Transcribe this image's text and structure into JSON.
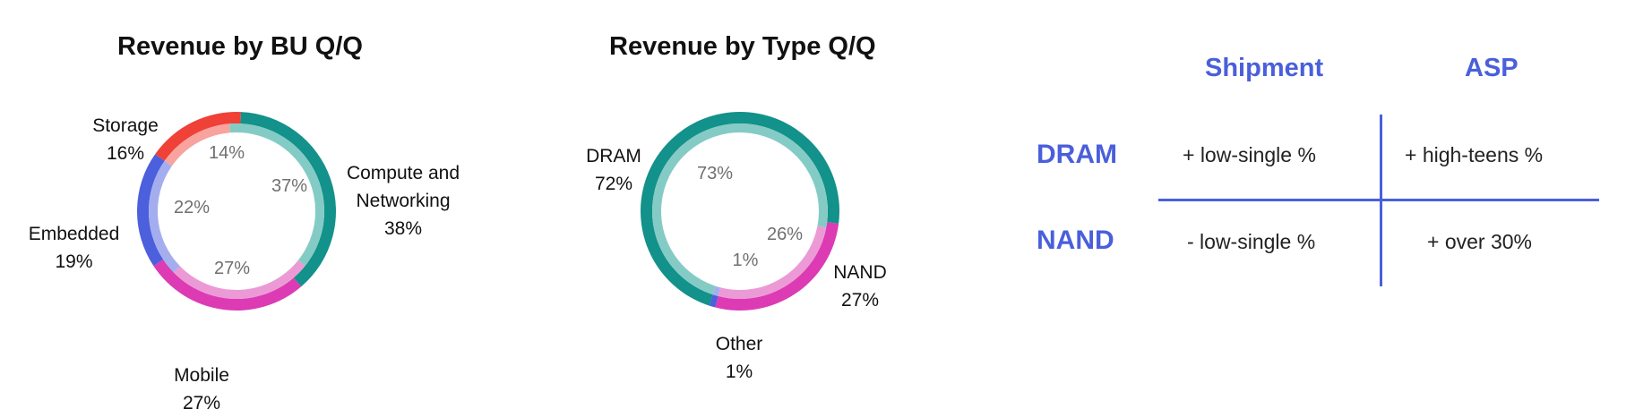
{
  "charts": {
    "bu": {
      "title": "Revenue by BU Q/Q",
      "segments": [
        {
          "name": "Storage",
          "outer": "16%",
          "inner": "14%",
          "color_outer": "#ef4137",
          "color_inner": "#f8a39e"
        },
        {
          "name": "Compute and\nNetworking",
          "outer": "38%",
          "inner": "37%",
          "color_outer": "#13918b",
          "color_inner": "#84cbc6"
        },
        {
          "name": "Mobile",
          "outer": "27%",
          "inner": "27%",
          "color_outer": "#dc3bb4",
          "color_inner": "#ec9ad6"
        },
        {
          "name": "Embedded",
          "outer": "19%",
          "inner": "22%",
          "color_outer": "#4c5fdd",
          "color_inner": "#a4aeee"
        }
      ]
    },
    "type": {
      "title": "Revenue by Type Q/Q",
      "segments": [
        {
          "name": "DRAM",
          "outer": "72%",
          "inner": "73%",
          "color_outer": "#13918b",
          "color_inner": "#84cbc6"
        },
        {
          "name": "NAND",
          "outer": "27%",
          "inner": "26%",
          "color_outer": "#dc3bb4",
          "color_inner": "#ec9ad6"
        },
        {
          "name": "Other",
          "outer": "1%",
          "inner": "1%",
          "color_outer": "#4c5fdd",
          "color_inner": "#a4aeee"
        }
      ]
    }
  },
  "chart_data": [
    {
      "type": "pie",
      "title": "Revenue by BU Q/Q",
      "categories": [
        "Storage",
        "Compute and Networking",
        "Mobile",
        "Embedded"
      ],
      "series": [
        {
          "values": [
            16,
            38,
            27,
            19
          ]
        },
        {
          "values": [
            14,
            37,
            27,
            22
          ]
        }
      ]
    },
    {
      "type": "pie",
      "title": "Revenue by Type Q/Q",
      "categories": [
        "DRAM",
        "NAND",
        "Other"
      ],
      "series": [
        {
          "values": [
            72,
            27,
            1
          ]
        },
        {
          "values": [
            73,
            26,
            1
          ]
        }
      ]
    },
    {
      "type": "table",
      "columns": [
        "Shipment",
        "ASP"
      ],
      "rows": [
        {
          "label": "DRAM",
          "values": [
            "+ low-single %",
            "+ high-teens %"
          ]
        },
        {
          "label": "NAND",
          "values": [
            "- low-single %",
            "+ over 30%"
          ]
        }
      ]
    }
  ],
  "table": {
    "columns": [
      "Shipment",
      "ASP"
    ],
    "rows": [
      {
        "label": "DRAM",
        "shipment": "+ low-single %",
        "asp": "+ high-teens %"
      },
      {
        "label": "NAND",
        "shipment": "- low-single %",
        "asp": "+ over 30%"
      }
    ],
    "accent_color": "#4a5fdb"
  }
}
